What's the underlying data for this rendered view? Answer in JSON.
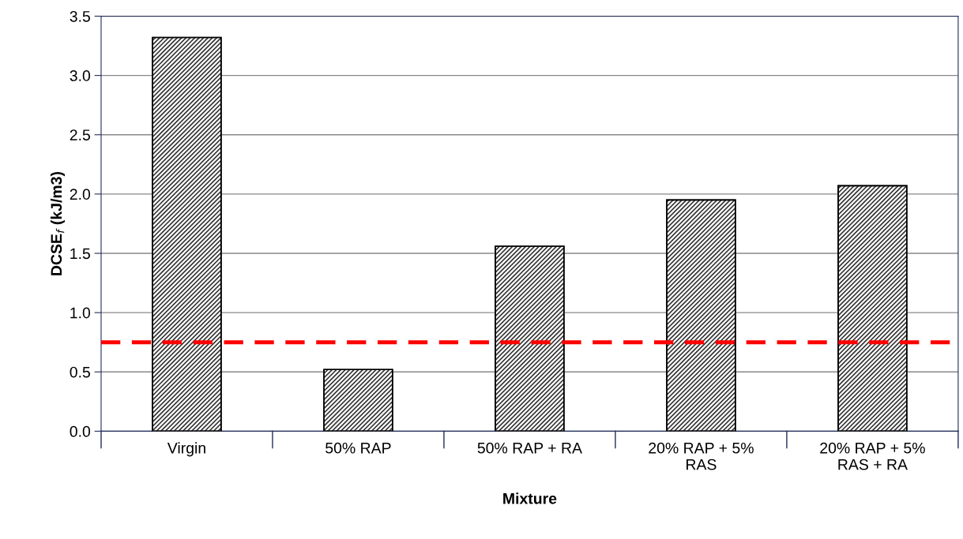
{
  "chart_data": {
    "type": "bar",
    "xlabel": "Mixture",
    "ylabel": "DCSE$_{f}$ (kJ/m3)",
    "categories": [
      "Virgin",
      "50% RAP",
      "50% RAP + RA",
      "20% RAP + 5%\nRAS",
      "20% RAP + 5%\nRAS + RA"
    ],
    "values": [
      3.32,
      0.52,
      1.56,
      1.95,
      2.07
    ],
    "color": "#333333",
    "ylim": [
      0.0,
      3.5
    ],
    "yticks": [
      {
        "value": 0,
        "label": "0.0"
      },
      0.5,
      {
        "value": 1,
        "label": "1.0"
      },
      1.5,
      {
        "value": 2,
        "label": "2.0"
      },
      2.5,
      {
        "value": 3,
        "label": "3.0"
      },
      3.5
    ],
    "grid": "y",
    "ref_lines": [
      {
        "axis": "y",
        "value": 0.75,
        "color": "#ff0000",
        "line_style": "dashed"
      }
    ]
  }
}
